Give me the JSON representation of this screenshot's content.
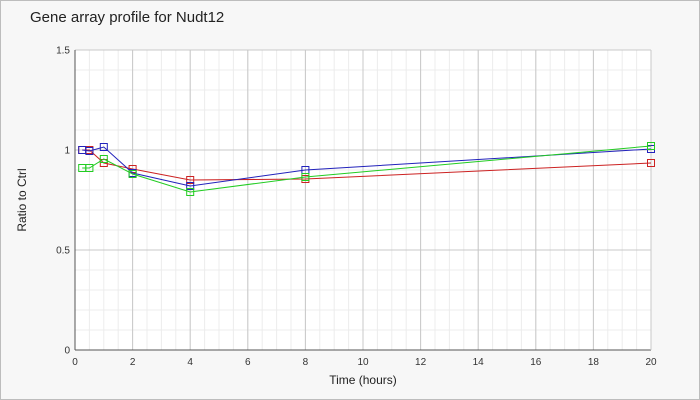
{
  "chart_data": {
    "type": "line",
    "title": "Gene array profile for Nudt12",
    "xlabel": "Time (hours)",
    "ylabel": "Ratio to Ctrl",
    "xlim": [
      0,
      20
    ],
    "ylim": [
      0,
      1.5
    ],
    "x_ticks": [
      0,
      2,
      4,
      6,
      8,
      10,
      12,
      14,
      16,
      18,
      20
    ],
    "y_ticks": [
      0,
      0.5,
      1,
      1.5
    ],
    "y_tick_labels": [
      "0",
      "0.5",
      "1",
      "1.5"
    ],
    "grid": true,
    "legend": "none",
    "series": [
      {
        "color": "#cc2222",
        "points": [
          [
            0.25,
            1.0
          ],
          [
            0.5,
            1.0
          ],
          [
            1,
            0.935
          ],
          [
            2,
            0.905
          ],
          [
            4,
            0.85
          ],
          [
            8,
            0.855
          ],
          [
            20,
            0.935
          ]
        ]
      },
      {
        "color": "#2222bb",
        "points": [
          [
            0.25,
            1.0
          ],
          [
            0.5,
            0.995
          ],
          [
            1,
            1.015
          ],
          [
            2,
            0.885
          ],
          [
            4,
            0.82
          ],
          [
            8,
            0.9
          ],
          [
            20,
            1.005
          ]
        ]
      },
      {
        "color": "#22cc22",
        "points": [
          [
            0.25,
            0.91
          ],
          [
            0.5,
            0.91
          ],
          [
            1,
            0.955
          ],
          [
            2,
            0.88
          ],
          [
            4,
            0.79
          ],
          [
            8,
            0.865
          ],
          [
            20,
            1.02
          ]
        ]
      }
    ]
  }
}
